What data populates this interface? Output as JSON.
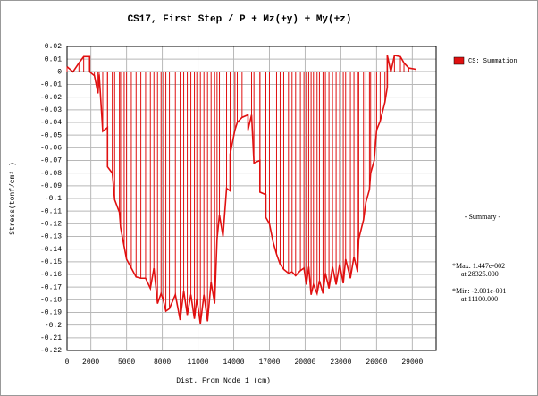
{
  "chart_data": {
    "type": "line",
    "title": "CS17, First Step / P + Mz(+y) + My(+z)",
    "x_label": "Dist. From Node 1 (cm)",
    "y_label": "Stress(tonf/cm² )",
    "xlim": [
      0,
      31000
    ],
    "ylim": [
      -0.22,
      0.02
    ],
    "xticks": [
      0,
      2000,
      5000,
      8000,
      11000,
      14000,
      17000,
      20000,
      23000,
      26000,
      29000
    ],
    "yticks": [
      0.02,
      0.01,
      0,
      -0.01,
      -0.02,
      -0.03,
      -0.04,
      -0.05,
      -0.06,
      -0.07,
      -0.08,
      -0.09,
      -0.1,
      -0.11,
      -0.12,
      -0.13,
      -0.14,
      -0.15,
      -0.16,
      -0.17,
      -0.18,
      -0.19,
      -0.2,
      -0.21,
      -0.22
    ],
    "grid": true,
    "legend": "top-right",
    "x": [
      0,
      500,
      1000,
      1400,
      1900,
      1900,
      2300,
      2600,
      2700,
      3000,
      3400,
      3400,
      3800,
      4000,
      4400,
      4500,
      4800,
      5000,
      5400,
      5800,
      6200,
      6600,
      7000,
      7300,
      7600,
      7900,
      8100,
      8300,
      8600,
      9100,
      9500,
      9800,
      10100,
      10400,
      10700,
      10900,
      11200,
      11500,
      11800,
      12100,
      12400,
      12600,
      12800,
      13100,
      13400,
      13700,
      13700,
      14100,
      14300,
      14700,
      15200,
      15200,
      15500,
      15700,
      16200,
      16200,
      16700,
      16700,
      17000,
      17300,
      17600,
      17900,
      18200,
      18600,
      18900,
      19200,
      19600,
      19900,
      20100,
      20300,
      20500,
      20700,
      21000,
      21200,
      21500,
      21700,
      22000,
      22300,
      22600,
      22900,
      23200,
      23400,
      23800,
      24100,
      24400,
      24500,
      24900,
      25100,
      25400,
      25500,
      25800,
      26000,
      26300,
      26700,
      26900,
      26900,
      27200,
      27500,
      28000,
      28300,
      28700,
      29300
    ],
    "series": [
      {
        "name": "CS: Summation",
        "color": "#e01010",
        "values": [
          0.004,
          0.0,
          0.007,
          0.012,
          0.012,
          0.0,
          -0.003,
          -0.017,
          -0.002,
          -0.047,
          -0.044,
          -0.075,
          -0.08,
          -0.101,
          -0.111,
          -0.123,
          -0.138,
          -0.148,
          -0.155,
          -0.162,
          -0.163,
          -0.163,
          -0.171,
          -0.155,
          -0.183,
          -0.175,
          -0.181,
          -0.189,
          -0.187,
          -0.176,
          -0.196,
          -0.173,
          -0.192,
          -0.176,
          -0.195,
          -0.179,
          -0.199,
          -0.176,
          -0.197,
          -0.166,
          -0.183,
          -0.132,
          -0.113,
          -0.13,
          -0.092,
          -0.094,
          -0.065,
          -0.046,
          -0.04,
          -0.036,
          -0.034,
          -0.046,
          -0.034,
          -0.072,
          -0.07,
          -0.095,
          -0.097,
          -0.115,
          -0.12,
          -0.134,
          -0.144,
          -0.152,
          -0.156,
          -0.159,
          -0.158,
          -0.161,
          -0.157,
          -0.155,
          -0.168,
          -0.154,
          -0.176,
          -0.168,
          -0.175,
          -0.165,
          -0.175,
          -0.159,
          -0.171,
          -0.154,
          -0.168,
          -0.152,
          -0.167,
          -0.148,
          -0.163,
          -0.146,
          -0.158,
          -0.132,
          -0.117,
          -0.103,
          -0.093,
          -0.08,
          -0.07,
          -0.046,
          -0.039,
          -0.024,
          -0.012,
          0.013,
          0.0,
          0.013,
          0.012,
          0.007,
          0.003,
          0.002
        ]
      }
    ],
    "summary": {
      "title": "- Summary -",
      "max": "*Max: 1.447e-002",
      "max_at": "at 28325.000",
      "min": "*Min: -2.001e-001",
      "min_at": "at 11100.000"
    }
  }
}
